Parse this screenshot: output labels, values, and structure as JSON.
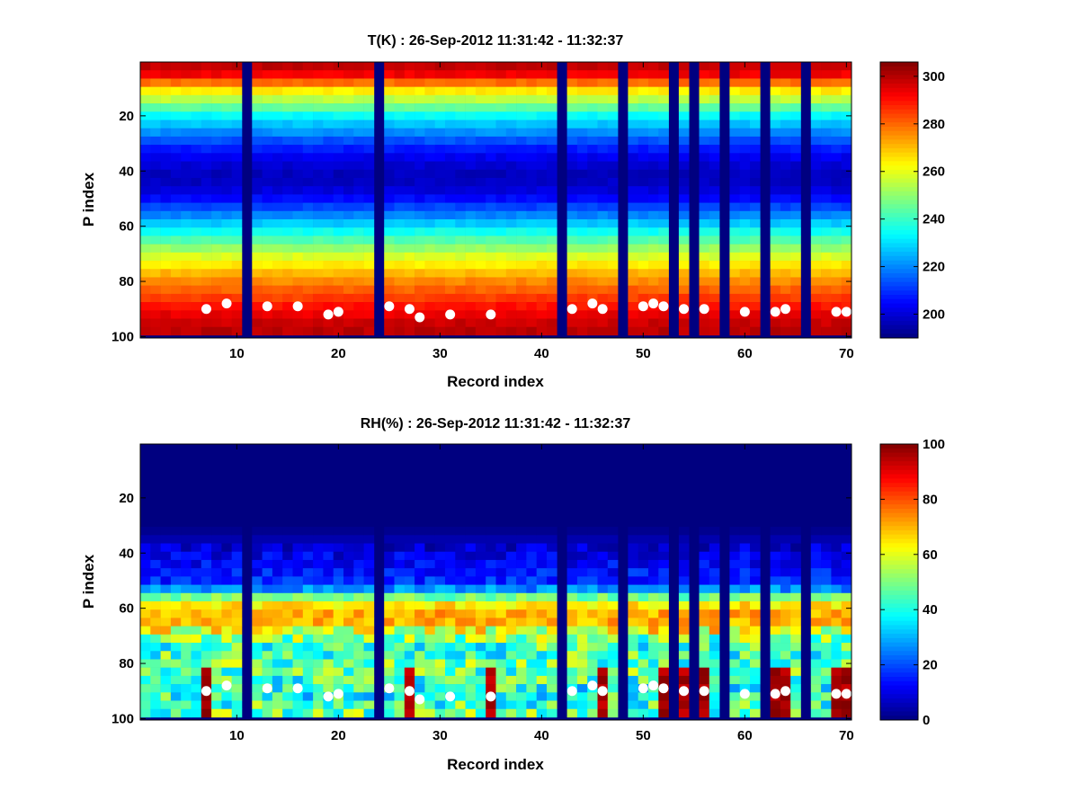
{
  "chart_data": [
    {
      "type": "heatmap",
      "title": "T(K) : 26-Sep-2012 11:31:42 - 11:32:37",
      "xlabel": "Record index",
      "ylabel": "P index",
      "xlim": [
        0.5,
        70.5
      ],
      "ylim": [
        0.5,
        100.5
      ],
      "x_ticks": [
        "10",
        "20",
        "30",
        "40",
        "50",
        "60",
        "70"
      ],
      "y_ticks": [
        "20",
        "40",
        "60",
        "80",
        "100"
      ],
      "colorbar_ticks": [
        "200",
        "220",
        "240",
        "260",
        "280",
        "300"
      ],
      "clim": [
        190,
        306
      ],
      "colormap": "jet",
      "missing_records": [
        11,
        24,
        42,
        48,
        53,
        55,
        58,
        62,
        66
      ],
      "profile_nodes": [
        [
          0,
          301
        ],
        [
          5,
          292
        ],
        [
          10,
          266
        ],
        [
          15,
          250
        ],
        [
          20,
          232
        ],
        [
          25,
          222
        ],
        [
          30,
          210
        ],
        [
          35,
          202
        ],
        [
          40,
          197
        ],
        [
          45,
          198
        ],
        [
          50,
          206
        ],
        [
          55,
          218
        ],
        [
          60,
          232
        ],
        [
          65,
          244
        ],
        [
          70,
          257
        ],
        [
          75,
          268
        ],
        [
          80,
          277
        ],
        [
          85,
          284
        ],
        [
          90,
          292
        ],
        [
          95,
          298
        ],
        [
          99,
          300
        ]
      ],
      "white_points": [
        [
          7,
          90
        ],
        [
          9,
          88
        ],
        [
          13,
          89
        ],
        [
          16,
          89
        ],
        [
          19,
          92
        ],
        [
          20,
          91
        ],
        [
          25,
          89
        ],
        [
          27,
          90
        ],
        [
          28,
          93
        ],
        [
          31,
          92
        ],
        [
          35,
          92
        ],
        [
          43,
          90
        ],
        [
          45,
          88
        ],
        [
          46,
          90
        ],
        [
          50,
          89
        ],
        [
          51,
          88
        ],
        [
          52,
          89
        ],
        [
          54,
          90
        ],
        [
          56,
          90
        ],
        [
          60,
          91
        ],
        [
          63,
          91
        ],
        [
          64,
          90
        ],
        [
          69,
          91
        ],
        [
          70,
          91
        ]
      ]
    },
    {
      "type": "heatmap",
      "title": "RH(%) : 26-Sep-2012 11:31:42 - 11:32:37",
      "xlabel": "Record index",
      "ylabel": "P index",
      "xlim": [
        0.5,
        70.5
      ],
      "ylim": [
        0.5,
        100.5
      ],
      "x_ticks": [
        "10",
        "20",
        "30",
        "40",
        "50",
        "60",
        "70"
      ],
      "y_ticks": [
        "20",
        "40",
        "60",
        "80",
        "100"
      ],
      "colorbar_ticks": [
        "0",
        "20",
        "40",
        "60",
        "80",
        "100"
      ],
      "clim": [
        0,
        100
      ],
      "colormap": "jet",
      "missing_records": [
        11,
        24,
        42,
        48,
        53,
        55,
        58,
        62,
        66
      ],
      "profile_nodes": [
        [
          0,
          0
        ],
        [
          30,
          0
        ],
        [
          35,
          5
        ],
        [
          40,
          10
        ],
        [
          45,
          13
        ],
        [
          50,
          17
        ],
        [
          53,
          28
        ],
        [
          55,
          45
        ],
        [
          57,
          60
        ],
        [
          60,
          70
        ],
        [
          64,
          72
        ],
        [
          67,
          62
        ],
        [
          70,
          50
        ],
        [
          75,
          42
        ],
        [
          80,
          48
        ],
        [
          85,
          45
        ],
        [
          90,
          38
        ],
        [
          95,
          45
        ],
        [
          99,
          50
        ]
      ],
      "hot_records": [
        7,
        27,
        35,
        46,
        52,
        54,
        56,
        63,
        64,
        69,
        70
      ],
      "white_points": [
        [
          7,
          90
        ],
        [
          9,
          88
        ],
        [
          13,
          89
        ],
        [
          16,
          89
        ],
        [
          19,
          92
        ],
        [
          20,
          91
        ],
        [
          25,
          89
        ],
        [
          27,
          90
        ],
        [
          28,
          93
        ],
        [
          31,
          92
        ],
        [
          35,
          92
        ],
        [
          43,
          90
        ],
        [
          45,
          88
        ],
        [
          46,
          90
        ],
        [
          50,
          89
        ],
        [
          51,
          88
        ],
        [
          52,
          89
        ],
        [
          54,
          90
        ],
        [
          56,
          90
        ],
        [
          60,
          91
        ],
        [
          63,
          91
        ],
        [
          64,
          90
        ],
        [
          69,
          91
        ],
        [
          70,
          91
        ]
      ]
    }
  ]
}
